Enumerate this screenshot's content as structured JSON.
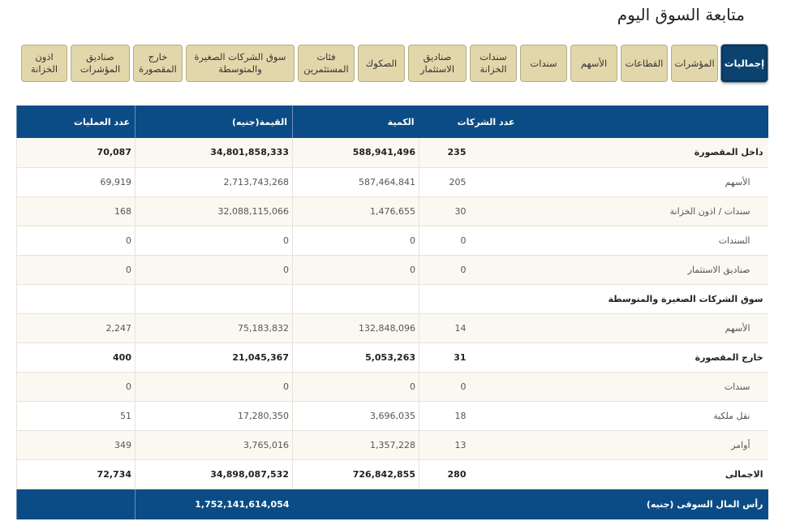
{
  "page": {
    "title": "متابعة السوق اليوم"
  },
  "tabs": [
    {
      "label": "إجماليات",
      "active": true
    },
    {
      "label": "المؤشرات"
    },
    {
      "label": "القطاعات"
    },
    {
      "label": "الأسهم"
    },
    {
      "label": "سندات"
    },
    {
      "label": "سندات\nالخزانة"
    },
    {
      "label": "صناديق\nالاستثمار"
    },
    {
      "label": "الصكوك"
    },
    {
      "label": "فئات\nالمستثمرين"
    },
    {
      "label": "سوق الشركات الصغيرة\nوالمتوسطة"
    },
    {
      "label": "خارج\nالمقصورة"
    },
    {
      "label": "صناديق\nالمؤشرات"
    },
    {
      "label": "اذون\nالخزانة"
    }
  ],
  "table": {
    "headers": {
      "companies": "عدد الشركات",
      "quantity": "الكمية",
      "value": "القيمة(جنيه)",
      "trades": "عدد العمليات"
    },
    "rows": [
      {
        "label": "داخل المقصورة",
        "companies": "235",
        "quantity": "588,941,496",
        "value": "34,801,858,333",
        "trades": "70,087"
      },
      {
        "label": "الأسهم",
        "companies": "205",
        "quantity": "587,464,841",
        "value": "2,713,743,268",
        "trades": "69,919"
      },
      {
        "label": "سندات / اذون الخزانة",
        "companies": "30",
        "quantity": "1,476,655",
        "value": "32,088,115,066",
        "trades": "168"
      },
      {
        "label": "السندات",
        "companies": "0",
        "quantity": "0",
        "value": "0",
        "trades": "0"
      },
      {
        "label": "صناديق الاستثمار",
        "companies": "0",
        "quantity": "0",
        "value": "0",
        "trades": "0"
      },
      {
        "label": "سوق الشركات الصغيرة والمتوسطة",
        "companies": "",
        "quantity": "",
        "value": "",
        "trades": ""
      },
      {
        "label": "الأسهم",
        "companies": "14",
        "quantity": "132,848,096",
        "value": "75,183,832",
        "trades": "2,247"
      },
      {
        "label": "خارج المقصورة",
        "companies": "31",
        "quantity": "5,053,263",
        "value": "21,045,367",
        "trades": "400"
      },
      {
        "label": "سندات",
        "companies": "0",
        "quantity": "0",
        "value": "0",
        "trades": "0"
      },
      {
        "label": "نقل ملكية",
        "companies": "18",
        "quantity": "3,696,035",
        "value": "17,280,350",
        "trades": "51"
      },
      {
        "label": "أوامر",
        "companies": "13",
        "quantity": "1,357,228",
        "value": "3,765,016",
        "trades": "349"
      },
      {
        "label": "الاجمالى",
        "companies": "280",
        "quantity": "726,842,855",
        "value": "34,898,087,532",
        "trades": "72,734"
      }
    ],
    "footer": {
      "label": "رأس المال السوقى (جنيه)",
      "value": "1,752,141,614,054"
    }
  }
}
